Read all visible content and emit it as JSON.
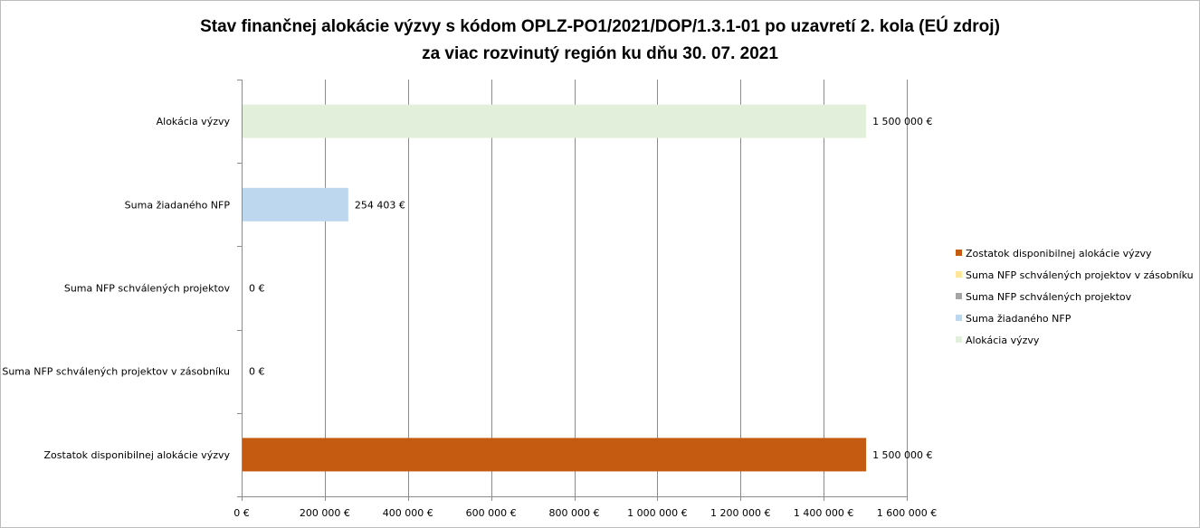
{
  "chart_data": {
    "type": "bar",
    "orientation": "horizontal",
    "title": [
      "Stav finančnej alokácie výzvy s kódom OPLZ-PO1/2021/DOP/1.3.1-01 po uzavretí 2. kola (EÚ zdroj)",
      "za viac rozvinutý región ku dňu 30. 07. 2021"
    ],
    "categories": [
      "Alokácia výzvy",
      "Suma žiadaného NFP",
      "Suma NFP schválených projektov",
      "Suma NFP schválených projektov v zásobníku",
      "Zostatok disponibilnej alokácie výzvy"
    ],
    "values": [
      1500000,
      254403,
      0,
      0,
      1500000
    ],
    "data_labels": [
      "1 500 000 €",
      "254 403 €",
      "0 €",
      "0 €",
      "1 500 000 €"
    ],
    "colors": [
      "#e2efda",
      "#bdd7ee",
      "#a5a5a5",
      "#ffe699",
      "#c55a11"
    ],
    "xlim": [
      0,
      1600000
    ],
    "x_ticks": [
      0,
      200000,
      400000,
      600000,
      800000,
      1000000,
      1200000,
      1400000,
      1600000
    ],
    "x_tick_labels": [
      "0 €",
      "200 000 €",
      "400 000 €",
      "600 000 €",
      "800 000 €",
      "1 000 000 €",
      "1 200 000 €",
      "1 400 000 €",
      "1 600 000 €"
    ],
    "grid": true,
    "legend_position": "right",
    "legend": [
      {
        "label": "Zostatok disponibilnej alokácie výzvy",
        "color": "#c55a11"
      },
      {
        "label": "Suma NFP schválených projektov v zásobníku",
        "color": "#ffe699"
      },
      {
        "label": "Suma NFP schválených projektov",
        "color": "#a5a5a5"
      },
      {
        "label": "Suma žiadaného NFP",
        "color": "#bdd7ee"
      },
      {
        "label": "Alokácia výzvy",
        "color": "#e2efda"
      }
    ]
  }
}
